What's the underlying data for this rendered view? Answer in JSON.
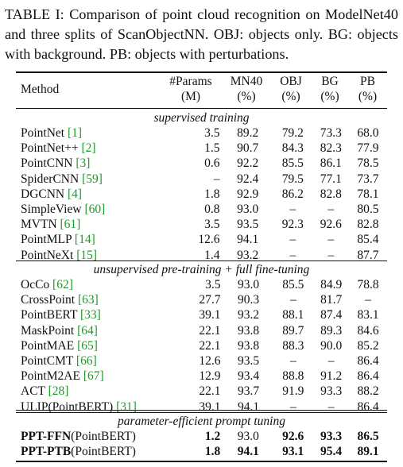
{
  "caption": "TABLE I: Comparison of point cloud recognition on ModelNet40 and three splits of ScanObjectNN. OBJ: objects only. BG: objects with background. PB: objects with perturbations.",
  "header": {
    "method": "Method",
    "params_line1": "#Params",
    "params_line2": "(M)",
    "mn40_line1": "MN40",
    "mn40_line2": "(%)",
    "obj_line1": "OBJ",
    "obj_line2": "(%)",
    "bg_line1": "BG",
    "bg_line2": "(%)",
    "pb_line1": "PB",
    "pb_line2": "(%)"
  },
  "sections": [
    {
      "title": "supervised training",
      "rows": [
        {
          "name": "PointNet",
          "ref": "[1]",
          "params": "3.5",
          "mn40": "89.2",
          "obj": "79.2",
          "bg": "73.3",
          "pb": "68.0"
        },
        {
          "name": "PointNet++",
          "ref": "[2]",
          "params": "1.5",
          "mn40": "90.7",
          "obj": "84.3",
          "bg": "82.3",
          "pb": "77.9"
        },
        {
          "name": "PointCNN",
          "ref": "[3]",
          "params": "0.6",
          "mn40": "92.2",
          "obj": "85.5",
          "bg": "86.1",
          "pb": "78.5"
        },
        {
          "name": "SpiderCNN",
          "ref": "[59]",
          "params": "–",
          "mn40": "92.4",
          "obj": "79.5",
          "bg": "77.1",
          "pb": "73.7"
        },
        {
          "name": "DGCNN",
          "ref": "[4]",
          "params": "1.8",
          "mn40": "92.9",
          "obj": "86.2",
          "bg": "82.8",
          "pb": "78.1"
        },
        {
          "name": "SimpleView",
          "ref": "[60]",
          "params": "0.8",
          "mn40": "93.0",
          "obj": "–",
          "bg": "–",
          "pb": "80.5"
        },
        {
          "name": "MVTN",
          "ref": "[61]",
          "params": "3.5",
          "mn40": "93.5",
          "obj": "92.3",
          "bg": "92.6",
          "pb": "82.8"
        },
        {
          "name": "PointMLP",
          "ref": "[14]",
          "params": "12.6",
          "mn40": "94.1",
          "obj": "–",
          "bg": "–",
          "pb": "85.4"
        },
        {
          "name": "PointNeXt",
          "ref": "[15]",
          "params": "1.4",
          "mn40": "93.2",
          "obj": "–",
          "bg": "–",
          "pb": "87.7"
        }
      ]
    },
    {
      "title": "unsupervised pre-training + full fine-tuning",
      "rows": [
        {
          "name": "OcCo",
          "ref": "[62]",
          "params": "3.5",
          "mn40": "93.0",
          "obj": "85.5",
          "bg": "84.9",
          "pb": "78.8"
        },
        {
          "name": "CrossPoint",
          "ref": "[63]",
          "params": "27.7",
          "mn40": "90.3",
          "obj": "–",
          "bg": "81.7",
          "pb": "–"
        },
        {
          "name": "PointBERT",
          "ref": "[33]",
          "params": "39.1",
          "mn40": "93.2",
          "obj": "88.1",
          "bg": "87.4",
          "pb": "83.1"
        },
        {
          "name": "MaskPoint",
          "ref": "[64]",
          "params": "22.1",
          "mn40": "93.8",
          "obj": "89.7",
          "bg": "89.3",
          "pb": "84.6"
        },
        {
          "name": "PointMAE",
          "ref": "[65]",
          "params": "22.1",
          "mn40": "93.8",
          "obj": "88.3",
          "bg": "90.0",
          "pb": "85.2"
        },
        {
          "name": "PointCMT",
          "ref": "[66]",
          "params": "12.6",
          "mn40": "93.5",
          "obj": "–",
          "bg": "–",
          "pb": "86.4"
        },
        {
          "name": "PointM2AE",
          "ref": "[67]",
          "params": "12.9",
          "mn40": "93.4",
          "obj": "88.8",
          "bg": "91.2",
          "pb": "86.4"
        },
        {
          "name": "ACT",
          "ref": "[28]",
          "params": "22.1",
          "mn40": "93.7",
          "obj": "91.9",
          "bg": "93.3",
          "pb": "88.2"
        },
        {
          "name": "ULIP(PointBERT)",
          "ref": "[31]",
          "params": "39.1",
          "mn40": "94.1",
          "obj": "–",
          "bg": "–",
          "pb": "86.4"
        }
      ]
    },
    {
      "title": "parameter-efficient prompt tuning",
      "rows": [
        {
          "name_bold": "PPT-FFN",
          "name_rest": "(PointBERT)",
          "params": "1.2",
          "mn40": "93.0",
          "obj": "92.6",
          "bg": "93.3",
          "pb": "86.5"
        },
        {
          "name_bold": "PPT-PTB",
          "name_rest": "(PointBERT)",
          "params": "1.8",
          "mn40": "94.1",
          "obj": "93.1",
          "bg": "95.4",
          "pb": "89.1"
        }
      ]
    }
  ]
}
